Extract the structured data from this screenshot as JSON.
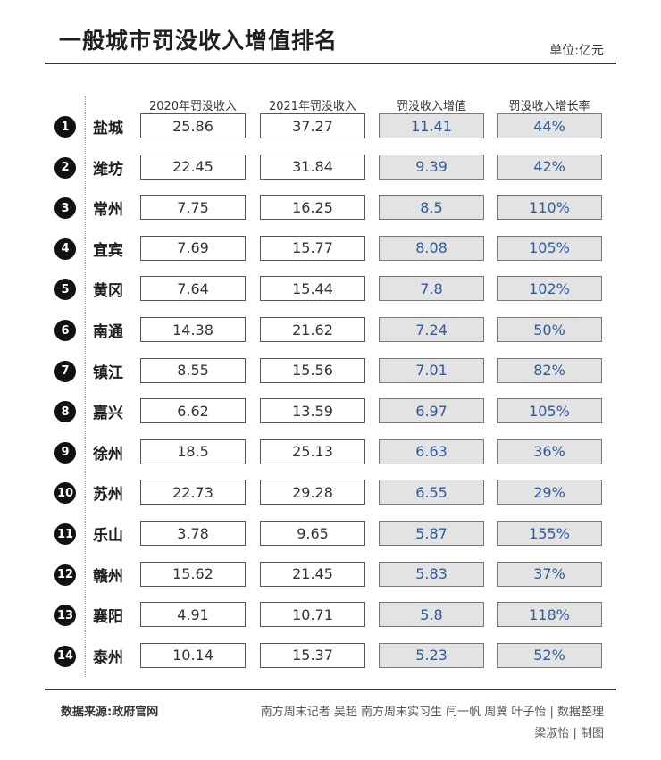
{
  "title": "一般城市罚没收入增值排名",
  "unit": "单位:亿元",
  "footer": {
    "source": "数据来源:政府官网",
    "credits_line1": "南方周末记者 吴超 南方周末实习生 闫一帆 周冀 叶子怡 | 数据整理",
    "credits_line2": "梁淑怡 | 制图"
  },
  "chart_data": {
    "type": "table",
    "columns": [
      "2020年罚没收入",
      "2021年罚没收入",
      "罚没收入增值",
      "罚没收入增长率"
    ],
    "rows": [
      {
        "rank": "1",
        "city": "盐城",
        "v2020": "25.86",
        "v2021": "37.27",
        "increase": "11.41",
        "growth": "44%"
      },
      {
        "rank": "2",
        "city": "潍坊",
        "v2020": "22.45",
        "v2021": "31.84",
        "increase": "9.39",
        "growth": "42%"
      },
      {
        "rank": "3",
        "city": "常州",
        "v2020": "7.75",
        "v2021": "16.25",
        "increase": "8.5",
        "growth": "110%"
      },
      {
        "rank": "4",
        "city": "宜宾",
        "v2020": "7.69",
        "v2021": "15.77",
        "increase": "8.08",
        "growth": "105%"
      },
      {
        "rank": "5",
        "city": "黄冈",
        "v2020": "7.64",
        "v2021": "15.44",
        "increase": "7.8",
        "growth": "102%"
      },
      {
        "rank": "6",
        "city": "南通",
        "v2020": "14.38",
        "v2021": "21.62",
        "increase": "7.24",
        "growth": "50%"
      },
      {
        "rank": "7",
        "city": "镇江",
        "v2020": "8.55",
        "v2021": "15.56",
        "increase": "7.01",
        "growth": "82%"
      },
      {
        "rank": "8",
        "city": "嘉兴",
        "v2020": "6.62",
        "v2021": "13.59",
        "increase": "6.97",
        "growth": "105%"
      },
      {
        "rank": "9",
        "city": "徐州",
        "v2020": "18.5",
        "v2021": "25.13",
        "increase": "6.63",
        "growth": "36%"
      },
      {
        "rank": "10",
        "city": "苏州",
        "v2020": "22.73",
        "v2021": "29.28",
        "increase": "6.55",
        "growth": "29%"
      },
      {
        "rank": "11",
        "city": "乐山",
        "v2020": "3.78",
        "v2021": "9.65",
        "increase": "5.87",
        "growth": "155%"
      },
      {
        "rank": "12",
        "city": "赣州",
        "v2020": "15.62",
        "v2021": "21.45",
        "increase": "5.83",
        "growth": "37%"
      },
      {
        "rank": "13",
        "city": "襄阳",
        "v2020": "4.91",
        "v2021": "10.71",
        "increase": "5.8",
        "growth": "118%"
      },
      {
        "rank": "14",
        "city": "泰州",
        "v2020": "10.14",
        "v2021": "15.37",
        "increase": "5.23",
        "growth": "52%"
      }
    ]
  }
}
